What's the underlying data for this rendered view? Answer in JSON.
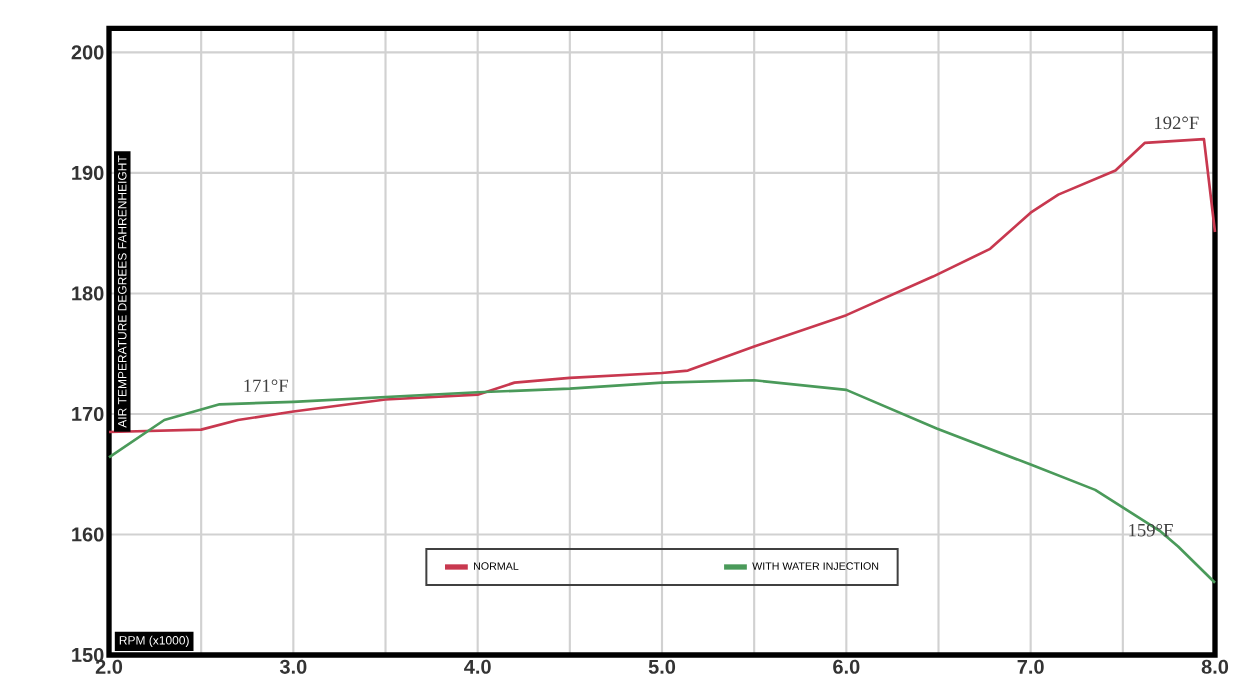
{
  "chart_data": {
    "type": "line",
    "xlabel": "RPM (x1000)",
    "ylabel": "AIR TEMPERATURE DEGREES FAHRENHEIGHT",
    "xlim": [
      2,
      8
    ],
    "ylim": [
      150,
      202
    ],
    "xticks": [
      {
        "value": 2,
        "label": "2.0"
      },
      {
        "value": 2.5,
        "label": null
      },
      {
        "value": 3,
        "label": "3.0"
      },
      {
        "value": 3.5,
        "label": null
      },
      {
        "value": 4,
        "label": "4.0"
      },
      {
        "value": 4.5,
        "label": null
      },
      {
        "value": 5,
        "label": "5.0"
      },
      {
        "value": 5.5,
        "label": null
      },
      {
        "value": 6,
        "label": "6.0"
      },
      {
        "value": 6.5,
        "label": null
      },
      {
        "value": 7,
        "label": "7.0"
      },
      {
        "value": 7.5,
        "label": null
      },
      {
        "value": 8,
        "label": "8.0"
      }
    ],
    "yticks": [
      150,
      160,
      170,
      180,
      190,
      200
    ],
    "grid": true,
    "legend": "bottom",
    "marker": "none",
    "line_style": "solid",
    "series": [
      {
        "name": "NORMAL",
        "color": "#c8384f",
        "x": [
          2.0,
          2.5,
          2.7,
          3.0,
          3.5,
          4.0,
          4.2,
          4.5,
          5.0,
          5.14,
          5.5,
          6.0,
          6.47,
          6.78,
          7.0,
          7.15,
          7.46,
          7.62,
          7.94,
          8.0
        ],
        "values": [
          168.5,
          168.7,
          169.5,
          170.2,
          171.2,
          171.6,
          172.6,
          173.0,
          173.4,
          173.6,
          175.6,
          178.2,
          181.4,
          183.7,
          186.7,
          188.2,
          190.2,
          192.5,
          192.8,
          185.1
        ]
      },
      {
        "name": "WITH WATER INJECTION",
        "color": "#4a9a5a",
        "x": [
          2.0,
          2.3,
          2.6,
          3.0,
          3.5,
          4.0,
          4.5,
          5.0,
          5.5,
          6.0,
          6.49,
          7.0,
          7.35,
          7.7,
          7.8,
          8.0
        ],
        "values": [
          166.4,
          169.5,
          170.8,
          171.0,
          171.4,
          171.8,
          172.1,
          172.6,
          172.8,
          172.0,
          168.8,
          165.8,
          163.7,
          160.3,
          159.0,
          156.0
        ]
      }
    ],
    "annotations": [
      {
        "text": "171°F",
        "x": 3.0,
        "y": 171.0
      },
      {
        "text": "192°F",
        "x": 7.94,
        "y": 192.8
      },
      {
        "text": "159°F",
        "x": 7.8,
        "y": 159.0
      }
    ]
  }
}
